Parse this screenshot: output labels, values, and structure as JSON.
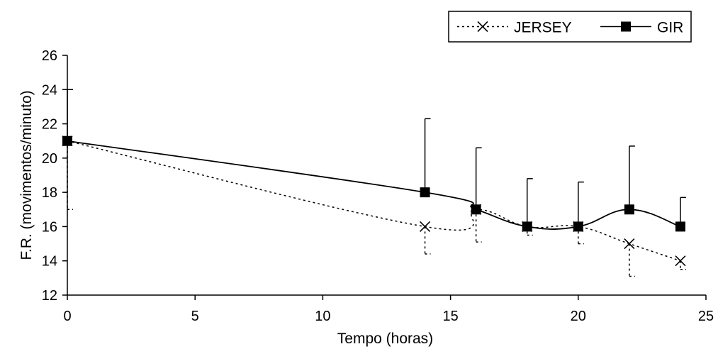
{
  "chart_data": {
    "type": "line",
    "title": "",
    "xlabel": "Tempo (horas)",
    "ylabel": "F.R. (movimentos/minuto)",
    "xlim": [
      0,
      25
    ],
    "ylim": [
      12,
      26
    ],
    "xticks": [
      0,
      5,
      10,
      15,
      20,
      25
    ],
    "yticks": [
      12,
      14,
      16,
      18,
      20,
      22,
      24,
      26
    ],
    "grid": false,
    "legend_position": "top-right",
    "series": [
      {
        "name": "JERSEY",
        "marker": "x",
        "line_style": "dotted",
        "color": "#000000",
        "error_bar_direction": "down",
        "points": [
          {
            "x": 0,
            "y": 21,
            "err": 4
          },
          {
            "x": 14,
            "y": 16,
            "err": 1.6
          },
          {
            "x": 16,
            "y": 17,
            "err": 1.9
          },
          {
            "x": 18,
            "y": 16,
            "err": 0.5
          },
          {
            "x": 20,
            "y": 16,
            "err": 1
          },
          {
            "x": 22,
            "y": 15,
            "err": 1.9
          },
          {
            "x": 24,
            "y": 14,
            "err": 0.5
          }
        ]
      },
      {
        "name": "GIR",
        "marker": "square",
        "line_style": "solid",
        "color": "#000000",
        "error_bar_direction": "up",
        "points": [
          {
            "x": 0,
            "y": 21,
            "err": 3
          },
          {
            "x": 14,
            "y": 18,
            "err": 4.3
          },
          {
            "x": 16,
            "y": 17,
            "err": 3.6
          },
          {
            "x": 18,
            "y": 16,
            "err": 2.8
          },
          {
            "x": 20,
            "y": 16,
            "err": 2.6
          },
          {
            "x": 22,
            "y": 17,
            "err": 3.7
          },
          {
            "x": 24,
            "y": 16,
            "err": 1.7
          }
        ]
      }
    ]
  }
}
